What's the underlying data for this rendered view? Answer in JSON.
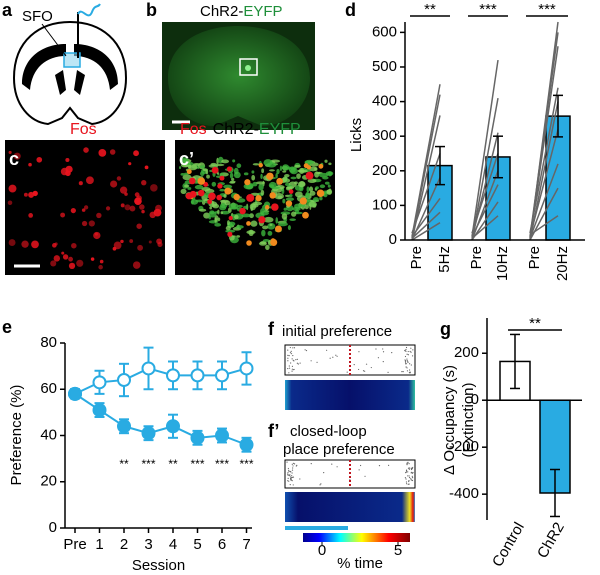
{
  "panels": {
    "a": {
      "label": "a",
      "sfo": "SFO"
    },
    "b": {
      "label": "b",
      "title": [
        "ChR2-",
        "EYFP"
      ]
    },
    "c": {
      "label": "c",
      "title": "Fos"
    },
    "c2": {
      "label": "c’",
      "title": [
        "Fos",
        "ChR2-",
        "EYFP"
      ]
    },
    "d": {
      "label": "d"
    },
    "e": {
      "label": "e"
    },
    "f": {
      "label": "f",
      "title": "initial preference"
    },
    "f2": {
      "label": "f’",
      "title": [
        "closed-loop",
        "place preference"
      ],
      "colorbar": {
        "ticks": [
          0,
          5
        ],
        "label": "% time"
      }
    },
    "g": {
      "label": "g"
    }
  },
  "chart_data": [
    {
      "type": "bar",
      "ylabel": "Licks",
      "categories": [
        "Pre",
        "5Hz",
        "Pre",
        "10Hz",
        "Pre",
        "20Hz"
      ],
      "values": [
        null,
        215,
        null,
        240,
        null,
        358
      ],
      "errors": [
        null,
        55,
        null,
        60,
        null,
        60
      ],
      "color": "#29abe2",
      "line_color": "#666666",
      "paired_lines": [
        {
          "pre": [
            10,
            5,
            0,
            20,
            0,
            10,
            5,
            0
          ],
          "stim": [
            450,
            420,
            360,
            250,
            180,
            120,
            80,
            50
          ]
        },
        {
          "pre": [
            10,
            0,
            5,
            20,
            0,
            10,
            0,
            5
          ],
          "stim": [
            520,
            410,
            310,
            250,
            200,
            160,
            110,
            70
          ]
        },
        {
          "pre": [
            0,
            10,
            5,
            20,
            0,
            10,
            5,
            0,
            15
          ],
          "stim": [
            630,
            600,
            560,
            440,
            400,
            320,
            220,
            150,
            70
          ]
        }
      ],
      "ylim": [
        0,
        630
      ],
      "yticks": [
        0,
        100,
        200,
        300,
        400,
        500,
        600
      ],
      "significance": [
        "**",
        "***",
        "***"
      ]
    },
    {
      "type": "line",
      "xlabel": "Session",
      "ylabel": "Preference (%)",
      "categories": [
        "Pre",
        "1",
        "2",
        "3",
        "4",
        "5",
        "6",
        "7"
      ],
      "series": [
        {
          "color": "#29abe2",
          "marker": "open",
          "values": [
            58,
            63,
            64,
            69,
            66,
            66,
            66,
            69
          ],
          "errors": [
            2,
            5,
            7,
            9,
            6,
            6,
            6,
            7
          ]
        },
        {
          "color": "#29abe2",
          "marker": "filled",
          "values": [
            58,
            51,
            44,
            41,
            44,
            39,
            40,
            36
          ],
          "errors": [
            2,
            3,
            3,
            3,
            5,
            3,
            3,
            3
          ]
        }
      ],
      "ylim": [
        0,
        80
      ],
      "yticks": [
        0,
        20,
        40,
        60,
        80
      ],
      "significance": [
        null,
        null,
        "**",
        "***",
        "**",
        "***",
        "***",
        "***"
      ]
    },
    {
      "type": "bar",
      "ylabel": [
        "Δ Occupancy (s)",
        "(Extinction)"
      ],
      "categories": [
        "Control",
        "ChR2"
      ],
      "values": [
        165,
        -395
      ],
      "errors": [
        115,
        100
      ],
      "colors": [
        "#ffffff",
        "#29abe2"
      ],
      "ylim": [
        -510,
        350
      ],
      "yticks": [
        -400,
        -200,
        0,
        200
      ],
      "significance": [
        "**"
      ]
    }
  ]
}
